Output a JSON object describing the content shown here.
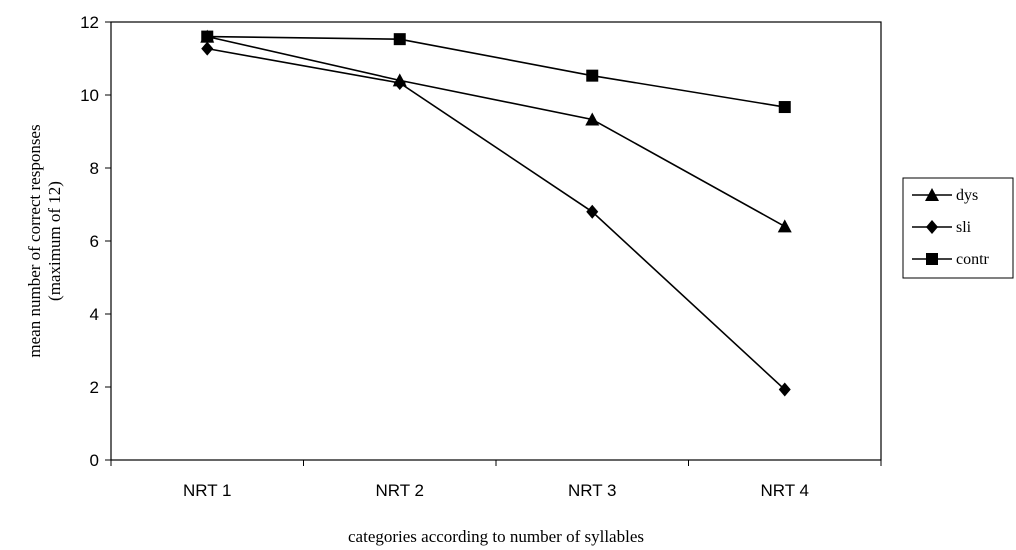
{
  "chart_data": {
    "type": "line",
    "categories": [
      "NRT 1",
      "NRT 2",
      "NRT 3",
      "NRT 4"
    ],
    "series": [
      {
        "name": "dys",
        "marker": "triangle",
        "values": [
          11.6,
          10.4,
          9.33,
          6.4
        ]
      },
      {
        "name": "sli",
        "marker": "diamond",
        "values": [
          11.27,
          10.33,
          6.8,
          1.93
        ]
      },
      {
        "name": "contr",
        "marker": "square",
        "values": [
          11.6,
          11.53,
          10.53,
          9.67
        ]
      }
    ],
    "xlabel": "categories according to number of syllables",
    "ylabel": [
      "mean number of correct responses",
      "(maximum of 12)"
    ],
    "ylim": [
      0,
      12
    ],
    "yticks": [
      0,
      2,
      4,
      6,
      8,
      10,
      12
    ],
    "grid": false,
    "legend_position": "right",
    "colors": {
      "line": "#000000",
      "marker": "#000000",
      "axis": "#000000"
    }
  }
}
